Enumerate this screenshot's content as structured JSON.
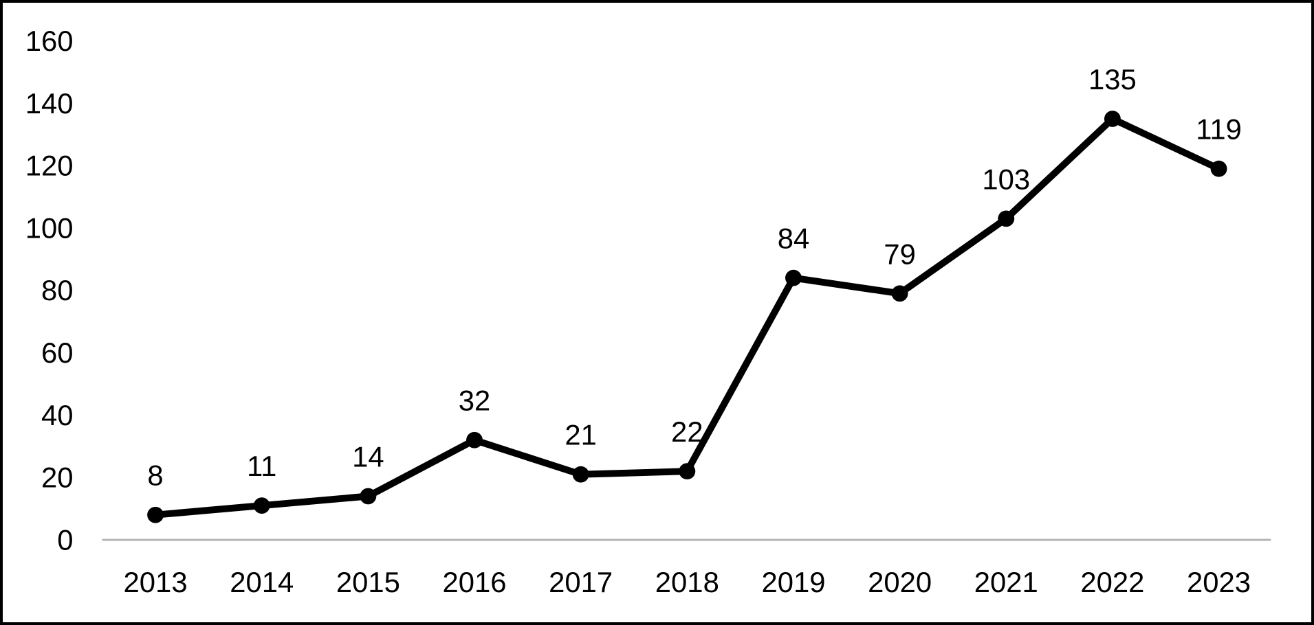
{
  "window": {
    "background": "#ffffff",
    "frame_border_color": "#000000"
  },
  "chart_data": {
    "type": "line",
    "title": "",
    "xlabel": "",
    "ylabel": "",
    "categories": [
      "2013",
      "2014",
      "2015",
      "2016",
      "2017",
      "2018",
      "2019",
      "2020",
      "2021",
      "2022",
      "2023"
    ],
    "values": [
      8,
      11,
      14,
      32,
      21,
      22,
      84,
      79,
      103,
      135,
      119
    ],
    "data_labels_shown": true,
    "ylim": [
      0,
      160
    ],
    "yticks": [
      0,
      20,
      40,
      60,
      80,
      100,
      120,
      140,
      160
    ],
    "grid": false,
    "legend_position": "none",
    "line_color": "#000000",
    "marker_color": "#000000",
    "marker_shape": "circle",
    "axis_line_color": "#b3b3b3",
    "text_color": "#000000"
  }
}
